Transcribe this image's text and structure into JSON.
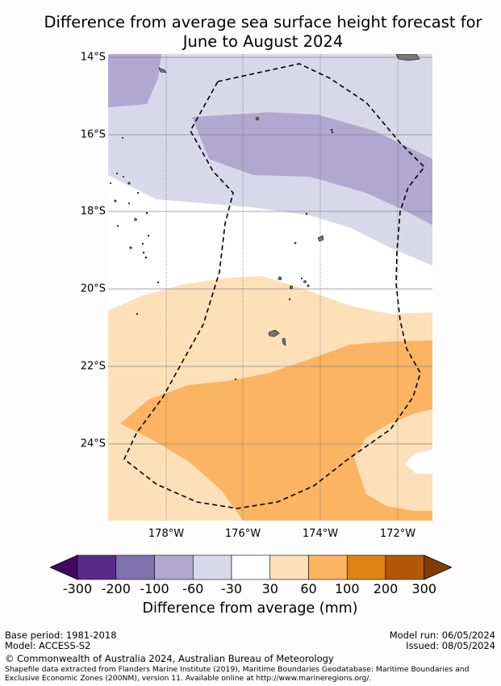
{
  "title_line1": "Difference from average sea surface height forecast for",
  "title_line2": "June to August 2024",
  "lat_labels": [
    "14°S",
    "16°S",
    "18°S",
    "20°S",
    "22°S",
    "24°S"
  ],
  "lon_labels": [
    "178°W",
    "176°W",
    "174°W",
    "172°W"
  ],
  "colorbar": {
    "ticks": [
      "-300",
      "-200",
      "-100",
      "-60",
      "-30",
      "30",
      "60",
      "100",
      "200",
      "300"
    ],
    "colors": [
      "#3f0a5e",
      "#5a2a8a",
      "#8072ae",
      "#b0a8d0",
      "#d9d8ea",
      "#ffffff",
      "#fde0b8",
      "#fbb461",
      "#e08214",
      "#b35806",
      "#7f3b08"
    ],
    "label": "Difference from average (mm)"
  },
  "footer": {
    "base_period": "Base period: 1981-2018",
    "model": "Model: ACCESS-S2",
    "model_run": "Model run: 06/05/2024",
    "issued": "Issued: 08/05/2024",
    "copyright": "© Commonwealth of Australia 2024, Australian Bureau of Meteorology",
    "shapefile_line1": "Shapefile data extracted from Flanders Marine Institute (2019), Maritime Boundaries Geodatabase: Maritime Boundaries and",
    "shapefile_line2": "Exclusive Economic Zones (200NM), version 11. Available online at http://www.marineregions.org/."
  }
}
